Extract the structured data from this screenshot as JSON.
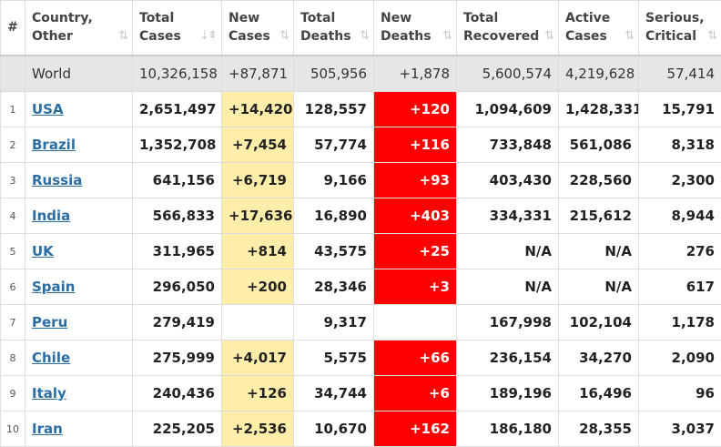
{
  "headers": [
    {
      "l1": "#",
      "l2": "",
      "sort": ""
    },
    {
      "l1": "Country,",
      "l2": "Other",
      "sort": "⇅"
    },
    {
      "l1": "Total",
      "l2": "Cases",
      "sort": "⇣⇞"
    },
    {
      "l1": "New",
      "l2": "Cases",
      "sort": "⇅"
    },
    {
      "l1": "Total",
      "l2": "Deaths",
      "sort": "⇅"
    },
    {
      "l1": "New",
      "l2": "Deaths",
      "sort": "⇅"
    },
    {
      "l1": "Total",
      "l2": "Recovered",
      "sort": "⇅"
    },
    {
      "l1": "Active",
      "l2": "Cases",
      "sort": "⇅"
    },
    {
      "l1": "Serious,",
      "l2": "Critical",
      "sort": "⇅"
    }
  ],
  "world": {
    "country": "World",
    "total_cases": "10,326,158",
    "new_cases": "+87,871",
    "total_deaths": "505,956",
    "new_deaths": "+1,878",
    "total_recovered": "5,600,574",
    "active_cases": "4,219,628",
    "serious": "57,414"
  },
  "rows": [
    {
      "idx": "1",
      "country": "USA",
      "total_cases": "2,651,497",
      "new_cases": "+14,420",
      "total_deaths": "128,557",
      "new_deaths": "+120",
      "total_recovered": "1,094,609",
      "active_cases": "1,428,331",
      "serious": "15,791"
    },
    {
      "idx": "2",
      "country": "Brazil",
      "total_cases": "1,352,708",
      "new_cases": "+7,454",
      "total_deaths": "57,774",
      "new_deaths": "+116",
      "total_recovered": "733,848",
      "active_cases": "561,086",
      "serious": "8,318"
    },
    {
      "idx": "3",
      "country": "Russia",
      "total_cases": "641,156",
      "new_cases": "+6,719",
      "total_deaths": "9,166",
      "new_deaths": "+93",
      "total_recovered": "403,430",
      "active_cases": "228,560",
      "serious": "2,300"
    },
    {
      "idx": "4",
      "country": "India",
      "total_cases": "566,833",
      "new_cases": "+17,636",
      "total_deaths": "16,890",
      "new_deaths": "+403",
      "total_recovered": "334,331",
      "active_cases": "215,612",
      "serious": "8,944"
    },
    {
      "idx": "5",
      "country": "UK",
      "total_cases": "311,965",
      "new_cases": "+814",
      "total_deaths": "43,575",
      "new_deaths": "+25",
      "total_recovered": "N/A",
      "active_cases": "N/A",
      "serious": "276"
    },
    {
      "idx": "6",
      "country": "Spain",
      "total_cases": "296,050",
      "new_cases": "+200",
      "total_deaths": "28,346",
      "new_deaths": "+3",
      "total_recovered": "N/A",
      "active_cases": "N/A",
      "serious": "617"
    },
    {
      "idx": "7",
      "country": "Peru",
      "total_cases": "279,419",
      "new_cases": "",
      "total_deaths": "9,317",
      "new_deaths": "",
      "total_recovered": "167,998",
      "active_cases": "102,104",
      "serious": "1,178"
    },
    {
      "idx": "8",
      "country": "Chile",
      "total_cases": "275,999",
      "new_cases": "+4,017",
      "total_deaths": "5,575",
      "new_deaths": "+66",
      "total_recovered": "236,154",
      "active_cases": "34,270",
      "serious": "2,090"
    },
    {
      "idx": "9",
      "country": "Italy",
      "total_cases": "240,436",
      "new_cases": "+126",
      "total_deaths": "34,744",
      "new_deaths": "+6",
      "total_recovered": "189,196",
      "active_cases": "16,496",
      "serious": "96"
    },
    {
      "idx": "10",
      "country": "Iran",
      "total_cases": "225,205",
      "new_cases": "+2,536",
      "total_deaths": "10,670",
      "new_deaths": "+162",
      "total_recovered": "186,180",
      "active_cases": "28,355",
      "serious": "3,037"
    }
  ],
  "colors": {
    "new_cases_highlight": "#ffeeaa",
    "new_deaths_highlight": "#ff0000",
    "link": "#2a6ea5",
    "world_row": "#e6e6e6"
  }
}
